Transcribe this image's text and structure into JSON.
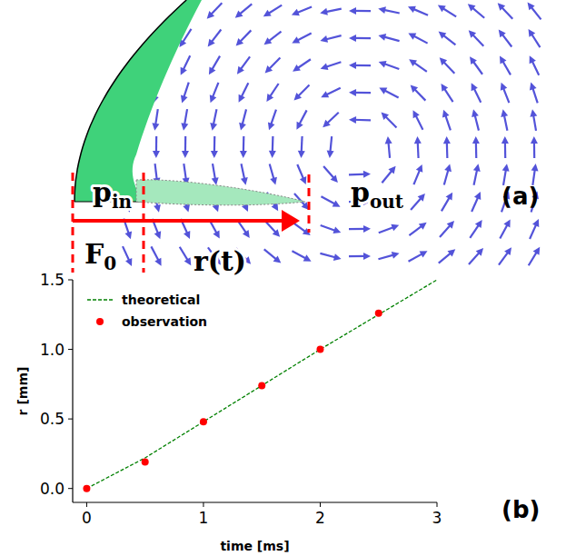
{
  "diagram": {
    "labels": [
      {
        "text": "p",
        "sub": "in"
      },
      {
        "text": "p",
        "sub": "out"
      },
      {
        "text": "F",
        "sub": "0"
      },
      {
        "text": "r(t)"
      }
    ],
    "panel_labels": [
      "(a)",
      "(b)"
    ]
  },
  "chart_data": {
    "type": "line",
    "xlabel": "time [ms]",
    "ylabel": "r [mm]",
    "xlim": [
      -0.12,
      3
    ],
    "xticks": [
      0,
      1,
      2,
      3
    ],
    "ylim": [
      -0.1,
      1.5
    ],
    "yticks": [
      {
        "value": 0,
        "label": "0.0"
      },
      {
        "value": 0.5,
        "label": "0.5"
      },
      {
        "value": 1,
        "label": "1.0"
      },
      {
        "value": 1.5,
        "label": "1.5"
      }
    ],
    "legend": "upper left",
    "series": [
      {
        "name": "theoretical",
        "type": "line",
        "color": "#008000",
        "line_style": "dashed",
        "x": [
          0,
          0.5,
          1,
          1.5,
          2,
          2.5,
          3
        ],
        "values": [
          0,
          0.22,
          0.48,
          0.74,
          1.0,
          1.25,
          1.5
        ]
      },
      {
        "name": "observation",
        "type": "scatter",
        "color": "#ff0000",
        "marker": "circle",
        "x": [
          0,
          0.5,
          1,
          1.5,
          2,
          2.5
        ],
        "values": [
          0,
          0.19,
          0.48,
          0.74,
          1.0,
          1.26
        ]
      }
    ]
  }
}
